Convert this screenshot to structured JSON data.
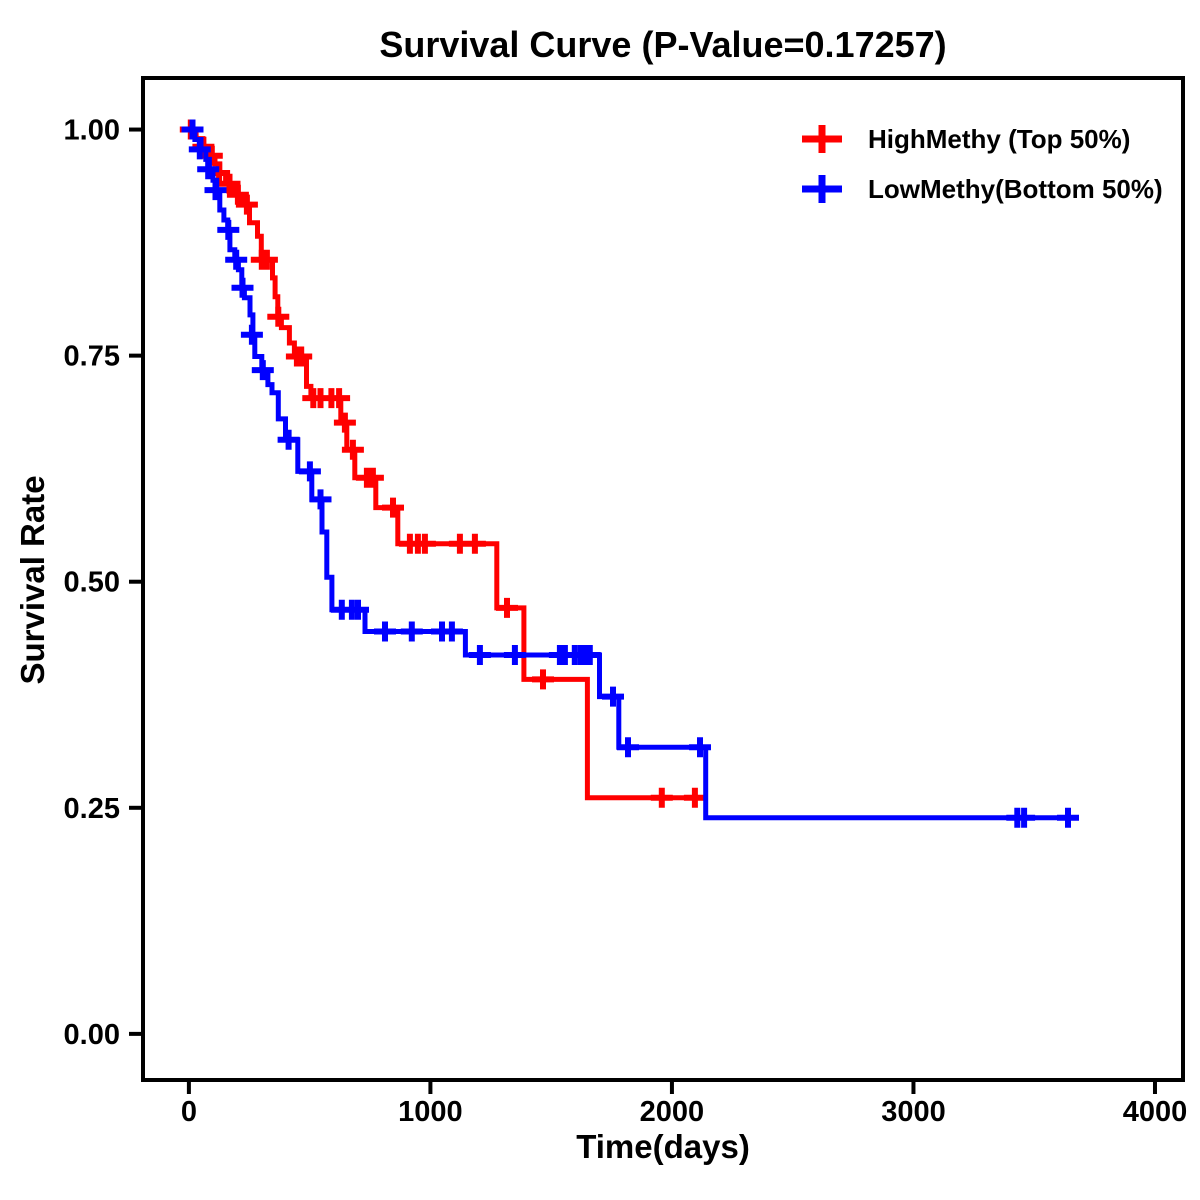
{
  "page": {
    "background": "#FFFFFF"
  },
  "chart_data": {
    "type": "line",
    "variant": "kaplan-meier-survival-step",
    "title": "Survival Curve (P-Value=0.17257)",
    "p_value": "0.17257",
    "xlabel": "Time(days)",
    "ylabel": "Survival Rate",
    "xlim": [
      -190,
      4116
    ],
    "ylim": [
      -0.051,
      1.057
    ],
    "x_ticks": [
      0,
      1000,
      2000,
      3000,
      4000
    ],
    "x_tick_labels": [
      "0",
      "1000",
      "2000",
      "3000",
      "4000"
    ],
    "y_ticks": [
      0,
      0.25,
      0.5,
      0.75,
      1
    ],
    "y_tick_labels": [
      "0.00",
      "0.25",
      "0.50",
      "0.75",
      "1.00"
    ],
    "grid": false,
    "axis_color": "#000000",
    "legend": {
      "position": "top-right-inside",
      "marker": "plus"
    },
    "series": [
      {
        "name": "HighMethy (Top 50%)",
        "color": "#FF0000",
        "points": [
          [
            0,
            1.0
          ],
          [
            30,
            0.99
          ],
          [
            58,
            0.981
          ],
          [
            88,
            0.971
          ],
          [
            108,
            0.962
          ],
          [
            128,
            0.952
          ],
          [
            152,
            0.94
          ],
          [
            188,
            0.928
          ],
          [
            222,
            0.917
          ],
          [
            251,
            0.897
          ],
          [
            284,
            0.882
          ],
          [
            300,
            0.856
          ],
          [
            346,
            0.836
          ],
          [
            357,
            0.815
          ],
          [
            368,
            0.793
          ],
          [
            383,
            0.781
          ],
          [
            416,
            0.764
          ],
          [
            437,
            0.749
          ],
          [
            487,
            0.716
          ],
          [
            505,
            0.703
          ],
          [
            629,
            0.676
          ],
          [
            654,
            0.646
          ],
          [
            687,
            0.615
          ],
          [
            774,
            0.582
          ],
          [
            865,
            0.542
          ],
          [
            1275,
            0.471
          ],
          [
            1387,
            0.392
          ],
          [
            1650,
            0.261
          ]
        ],
        "end_time": 2140,
        "censor_marks": [
          [
            8,
            1.0
          ],
          [
            60,
            0.981
          ],
          [
            95,
            0.971
          ],
          [
            125,
            0.952
          ],
          [
            168,
            0.94
          ],
          [
            203,
            0.928
          ],
          [
            240,
            0.917
          ],
          [
            302,
            0.856
          ],
          [
            323,
            0.856
          ],
          [
            370,
            0.793
          ],
          [
            447,
            0.749
          ],
          [
            465,
            0.749
          ],
          [
            515,
            0.703
          ],
          [
            545,
            0.703
          ],
          [
            590,
            0.703
          ],
          [
            622,
            0.703
          ],
          [
            646,
            0.676
          ],
          [
            679,
            0.646
          ],
          [
            737,
            0.615
          ],
          [
            762,
            0.615
          ],
          [
            845,
            0.582
          ],
          [
            915,
            0.542
          ],
          [
            948,
            0.542
          ],
          [
            977,
            0.542
          ],
          [
            1122,
            0.542
          ],
          [
            1184,
            0.542
          ],
          [
            1317,
            0.471
          ],
          [
            1466,
            0.392
          ],
          [
            1958,
            0.261
          ],
          [
            2095,
            0.261
          ]
        ]
      },
      {
        "name": "LowMethy(Bottom 50%)",
        "color": "#0000FF",
        "points": [
          [
            0,
            1.0
          ],
          [
            25,
            0.989
          ],
          [
            50,
            0.978
          ],
          [
            70,
            0.967
          ],
          [
            85,
            0.956
          ],
          [
            100,
            0.944
          ],
          [
            115,
            0.933
          ],
          [
            128,
            0.911
          ],
          [
            145,
            0.9
          ],
          [
            161,
            0.889
          ],
          [
            170,
            0.867
          ],
          [
            190,
            0.856
          ],
          [
            205,
            0.845
          ],
          [
            219,
            0.825
          ],
          [
            230,
            0.814
          ],
          [
            253,
            0.795
          ],
          [
            265,
            0.773
          ],
          [
            273,
            0.749
          ],
          [
            302,
            0.734
          ],
          [
            327,
            0.718
          ],
          [
            344,
            0.709
          ],
          [
            370,
            0.68
          ],
          [
            400,
            0.657
          ],
          [
            451,
            0.622
          ],
          [
            509,
            0.591
          ],
          [
            551,
            0.555
          ],
          [
            571,
            0.505
          ],
          [
            592,
            0.469
          ],
          [
            729,
            0.445
          ],
          [
            1145,
            0.419
          ],
          [
            1700,
            0.373
          ],
          [
            1780,
            0.317
          ],
          [
            2140,
            0.239
          ]
        ],
        "end_time": 3680,
        "censor_marks": [
          [
            15,
            1.0
          ],
          [
            45,
            0.978
          ],
          [
            80,
            0.956
          ],
          [
            110,
            0.933
          ],
          [
            163,
            0.889
          ],
          [
            196,
            0.856
          ],
          [
            222,
            0.825
          ],
          [
            261,
            0.773
          ],
          [
            306,
            0.734
          ],
          [
            413,
            0.657
          ],
          [
            501,
            0.622
          ],
          [
            545,
            0.591
          ],
          [
            633,
            0.469
          ],
          [
            675,
            0.469
          ],
          [
            700,
            0.469
          ],
          [
            812,
            0.445
          ],
          [
            923,
            0.445
          ],
          [
            1048,
            0.445
          ],
          [
            1089,
            0.445
          ],
          [
            1205,
            0.419
          ],
          [
            1350,
            0.419
          ],
          [
            1536,
            0.419
          ],
          [
            1557,
            0.419
          ],
          [
            1598,
            0.419
          ],
          [
            1623,
            0.419
          ],
          [
            1644,
            0.419
          ],
          [
            1660,
            0.419
          ],
          [
            1756,
            0.373
          ],
          [
            1818,
            0.317
          ],
          [
            2116,
            0.317
          ],
          [
            3430,
            0.239
          ],
          [
            3458,
            0.239
          ],
          [
            3640,
            0.239
          ]
        ]
      }
    ]
  }
}
